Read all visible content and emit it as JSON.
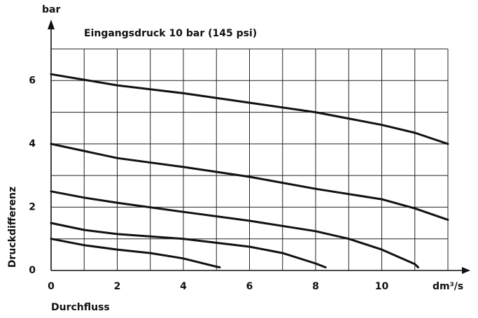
{
  "chart_data": {
    "type": "line",
    "title": "Eingangsdruck 10 bar (145 psi)",
    "y_unit": "bar",
    "y_label": "Druckdifferenz",
    "x_unit": "dm³/s",
    "x_label": "Durchfluss",
    "xlim": [
      0,
      12
    ],
    "ylim": [
      0,
      7
    ],
    "xticks": [
      0,
      2,
      4,
      6,
      8,
      10
    ],
    "yticks": [
      0,
      2,
      4,
      6
    ],
    "grid": true,
    "series": [
      {
        "color": "#111111",
        "x": [
          0,
          2,
          4,
          6,
          8,
          10,
          11,
          12
        ],
        "values": [
          6.2,
          5.85,
          5.6,
          5.3,
          5.0,
          4.6,
          4.35,
          4.0
        ]
      },
      {
        "color": "#111111",
        "x": [
          0,
          2,
          4,
          6,
          8,
          10,
          11,
          12
        ],
        "values": [
          4.0,
          3.55,
          3.27,
          2.96,
          2.58,
          2.25,
          1.96,
          1.6
        ]
      },
      {
        "color": "#111111",
        "x": [
          0,
          1,
          2,
          4,
          6,
          8,
          9,
          10,
          11,
          11.1
        ],
        "values": [
          2.5,
          2.3,
          2.14,
          1.85,
          1.57,
          1.24,
          1.0,
          0.66,
          0.2,
          0.1
        ]
      },
      {
        "color": "#111111",
        "x": [
          0,
          1,
          2,
          4,
          6,
          7,
          8,
          8.3
        ],
        "values": [
          1.5,
          1.28,
          1.15,
          1.0,
          0.75,
          0.55,
          0.22,
          0.1
        ]
      },
      {
        "color": "#111111",
        "x": [
          0,
          1,
          2,
          3,
          4,
          5,
          5.1
        ],
        "values": [
          1.0,
          0.8,
          0.66,
          0.55,
          0.38,
          0.12,
          0.1
        ]
      }
    ]
  }
}
